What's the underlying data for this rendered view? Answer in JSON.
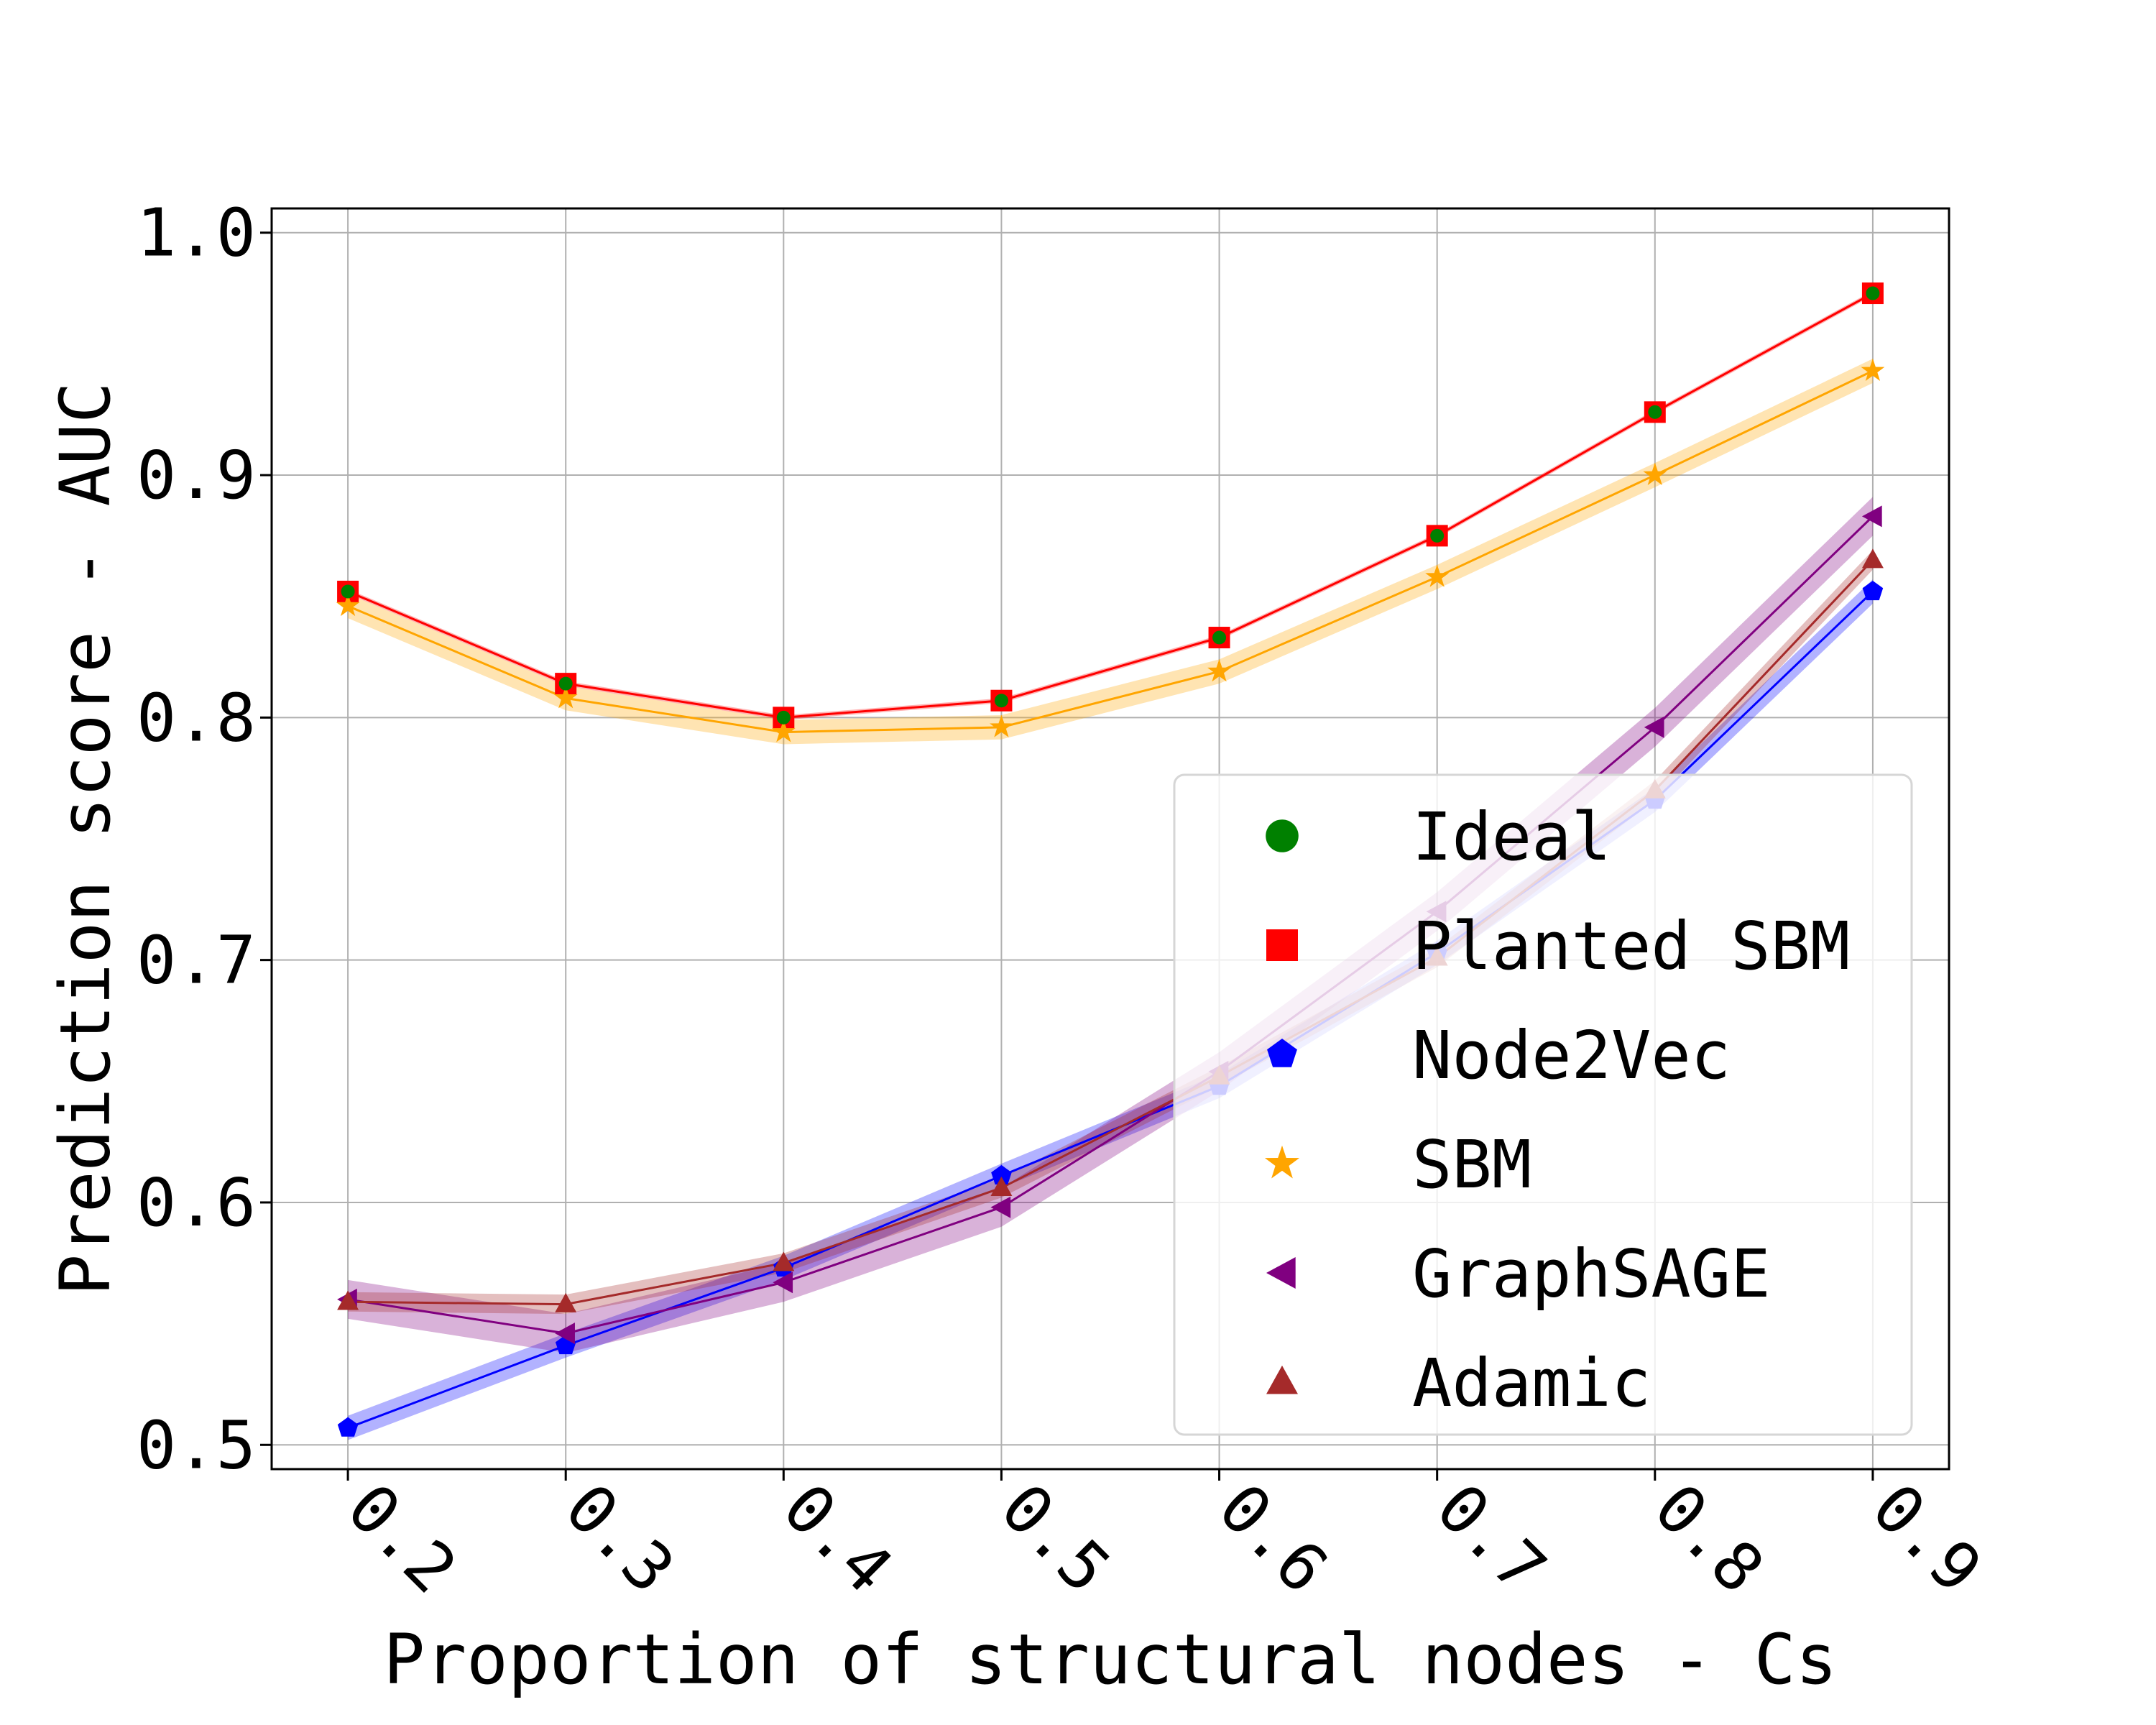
{
  "chart_data": {
    "type": "line",
    "title": "",
    "xlabel": "Proportion of structural nodes - Cs",
    "ylabel": "Prediction score - AUC",
    "x": [
      0.2,
      0.3,
      0.4,
      0.5,
      0.6,
      0.7,
      0.8,
      0.9
    ],
    "x_tick_labels": [
      "0.2",
      "0.3",
      "0.4",
      "0.5",
      "0.6",
      "0.7",
      "0.8",
      "0.9"
    ],
    "y_ticks": [
      0.5,
      0.6,
      0.7,
      0.8,
      0.9,
      1.0
    ],
    "y_tick_labels": [
      "0.5",
      "0.6",
      "0.7",
      "0.8",
      "0.9",
      "1.0"
    ],
    "xlim": [
      0.165,
      0.935
    ],
    "ylim": [
      0.49,
      1.01
    ],
    "grid": true,
    "legend_position": "center-right",
    "series": [
      {
        "name": "Ideal",
        "marker": "circle",
        "color": "#008000",
        "values": [
          0.852,
          0.814,
          0.8,
          0.807,
          0.833,
          0.875,
          0.926,
          0.975
        ],
        "band": 0.0,
        "show_line": false
      },
      {
        "name": "Planted SBM",
        "marker": "square",
        "color": "#ff0000",
        "values": [
          0.852,
          0.814,
          0.8,
          0.807,
          0.833,
          0.875,
          0.926,
          0.975
        ],
        "band": 0.001,
        "show_line": true
      },
      {
        "name": "Node2Vec",
        "marker": "pentagon",
        "color": "#0000ff",
        "values": [
          0.507,
          0.541,
          0.573,
          0.611,
          0.648,
          0.703,
          0.766,
          0.852
        ],
        "band": 0.005,
        "show_line": true
      },
      {
        "name": "SBM",
        "marker": "star",
        "color": "#ffa500",
        "values": [
          0.846,
          0.808,
          0.794,
          0.796,
          0.819,
          0.858,
          0.9,
          0.943
        ],
        "band": 0.005,
        "show_line": true
      },
      {
        "name": "GraphSAGE",
        "marker": "triangle-left",
        "color": "#800080",
        "values": [
          0.56,
          0.546,
          0.567,
          0.598,
          0.654,
          0.72,
          0.796,
          0.883
        ],
        "band": 0.008,
        "show_line": true
      },
      {
        "name": "Adamic",
        "marker": "triangle-up",
        "color": "#a52a2a",
        "values": [
          0.559,
          0.558,
          0.575,
          0.606,
          0.652,
          0.701,
          0.77,
          0.865
        ],
        "band": 0.004,
        "show_line": true
      }
    ]
  }
}
